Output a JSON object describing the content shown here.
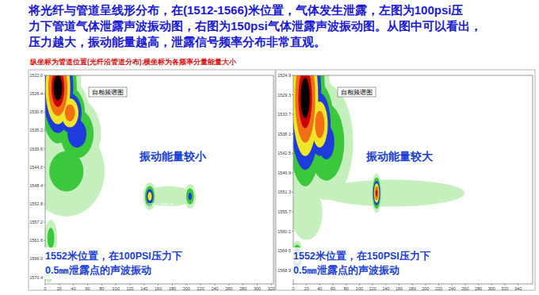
{
  "header": {
    "lines": [
      "将光纤与管道呈线形分布，在(1512-1566)米位置，气体发生泄露，左图为100psi压",
      "力下管道气体泄露声波振动图，右图为150psi气体泄露声波振动图。从图中可以看出，",
      "压力越大，振动能量越高，泄露信号频率分布非常直观。"
    ]
  },
  "note": "纵坐标为管道位置(光纤沿管道分布);横坐标为各频率分量能量大小",
  "chart_data": [
    {
      "type": "heatmap",
      "title": "自相频谱图",
      "xlim": [
        0,
        323
      ],
      "xticks": [
        0,
        20,
        40,
        60,
        80,
        100,
        120,
        140,
        160,
        180,
        200,
        220,
        240,
        260,
        280,
        300,
        320
      ],
      "ylim": [
        1522,
        1572
      ],
      "yticks": [
        {
          "value": 1522,
          "label": "1522.0"
        },
        1526.4,
        1530.8,
        1535.2,
        1539.6,
        {
          "value": 1544,
          "label": "1544.0"
        },
        1548.4,
        1552.8,
        1557.2,
        1561.6,
        {
          "value": 1566,
          "label": "1566.0"
        },
        1570.4
      ],
      "clim": [
        0,
        1
      ],
      "cells": [
        {
          "x": 18,
          "y": 1525,
          "energy": 1,
          "spread_x": 16,
          "spread_y": 8
        },
        {
          "x": 35,
          "y": 1531,
          "energy": 0.8,
          "spread_x": 14,
          "spread_y": 4
        },
        {
          "x": 45,
          "y": 1536,
          "energy": 0.5,
          "spread_x": 20,
          "spread_y": 5
        },
        {
          "x": 30,
          "y": 1545,
          "energy": 0.3,
          "spread_x": 40,
          "spread_y": 8
        },
        {
          "x": 148,
          "y": 1551,
          "energy": 0.65,
          "spread_x": 5,
          "spread_y": 1.8
        },
        {
          "x": 205,
          "y": 1551,
          "energy": 0.45,
          "spread_x": 5,
          "spread_y": 1.8
        },
        {
          "x": 175,
          "y": 1551,
          "energy": 0.25,
          "spread_x": 30,
          "spread_y": 2
        },
        {
          "x": 8,
          "y": 1561,
          "energy": 0.35,
          "spread_x": 6,
          "spread_y": 3
        },
        {
          "x": 5,
          "y": 1569,
          "energy": 0.3,
          "spread_x": 5,
          "spread_y": 2
        }
      ],
      "annotations": [
        "振动能量较小",
        "(150.7,1550.0)"
      ],
      "caption": [
        "1552米位置，在100PSI压力下",
        "0.5㎜泄露点的声波振动"
      ]
    },
    {
      "type": "heatmap",
      "title": "自相频谱图",
      "xlim": [
        0,
        362
      ],
      "xticks": [
        0,
        20,
        40,
        60,
        80,
        100,
        120,
        140,
        160,
        180,
        200,
        220,
        240,
        260,
        280,
        300,
        320,
        340
      ],
      "ylim": [
        1524.9,
        1572
      ],
      "yticks": [
        1524.9,
        1529.3,
        1533.7,
        1538.1,
        1542.5,
        1546.9,
        1551.3,
        1555.7,
        1560.1,
        1564.5,
        1568.9
      ],
      "clim": [
        0,
        1
      ],
      "cells": [
        {
          "x": 18,
          "y": 1530,
          "energy": 1,
          "spread_x": 18,
          "spread_y": 12
        },
        {
          "x": 40,
          "y": 1536,
          "energy": 0.8,
          "spread_x": 14,
          "spread_y": 6
        },
        {
          "x": 50,
          "y": 1540,
          "energy": 0.45,
          "spread_x": 25,
          "spread_y": 8
        },
        {
          "x": 150,
          "y": 1551.5,
          "energy": 0.25,
          "spread_x": 90,
          "spread_y": 2.5
        },
        {
          "x": 126,
          "y": 1551.5,
          "energy": 0.9,
          "spread_x": 4,
          "spread_y": 2.2
        },
        {
          "x": 20,
          "y": 1556,
          "energy": 0.25,
          "spread_x": 20,
          "spread_y": 5
        },
        {
          "x": 6,
          "y": 1566,
          "energy": 0.7,
          "spread_x": 5,
          "spread_y": 2
        }
      ],
      "annotations": [
        "振动能量较大"
      ],
      "caption": [
        "1552米位置，在150PSI压力下",
        "0.5㎜泄露点的声波振动"
      ]
    }
  ]
}
